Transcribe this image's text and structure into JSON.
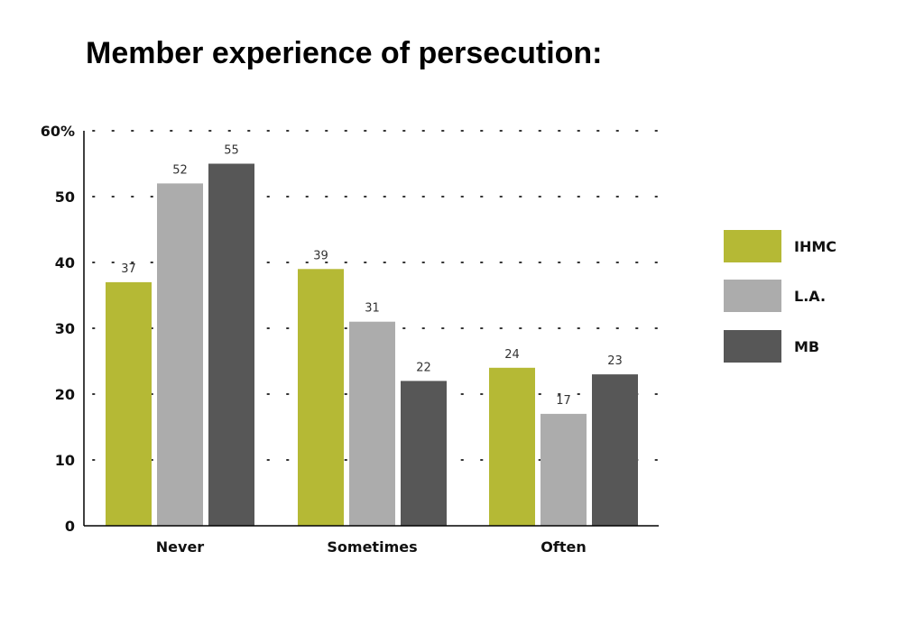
{
  "chart_data": {
    "type": "bar",
    "title": "Member experience of persecution:",
    "xlabel": "",
    "ylabel": "",
    "categories": [
      "Never",
      "Sometimes",
      "Often"
    ],
    "series": [
      {
        "name": "IHMC",
        "color": "#b5b935",
        "values": [
          37,
          39,
          24
        ]
      },
      {
        "name": "L.A.",
        "color": "#acacac",
        "values": [
          52,
          31,
          17
        ]
      },
      {
        "name": "MB",
        "color": "#575757",
        "values": [
          55,
          22,
          23
        ]
      }
    ],
    "ylim": [
      0,
      60
    ],
    "yticks": [
      {
        "value": 0,
        "label": "0"
      },
      {
        "value": 10,
        "label": "10"
      },
      {
        "value": 20,
        "label": "20"
      },
      {
        "value": 30,
        "label": "30"
      },
      {
        "value": 40,
        "label": "40"
      },
      {
        "value": 50,
        "label": "50"
      },
      {
        "value": 60,
        "label": "60%"
      }
    ],
    "grid": true,
    "grid_style": "dotted",
    "legend_position": "right",
    "data_labels": true
  }
}
